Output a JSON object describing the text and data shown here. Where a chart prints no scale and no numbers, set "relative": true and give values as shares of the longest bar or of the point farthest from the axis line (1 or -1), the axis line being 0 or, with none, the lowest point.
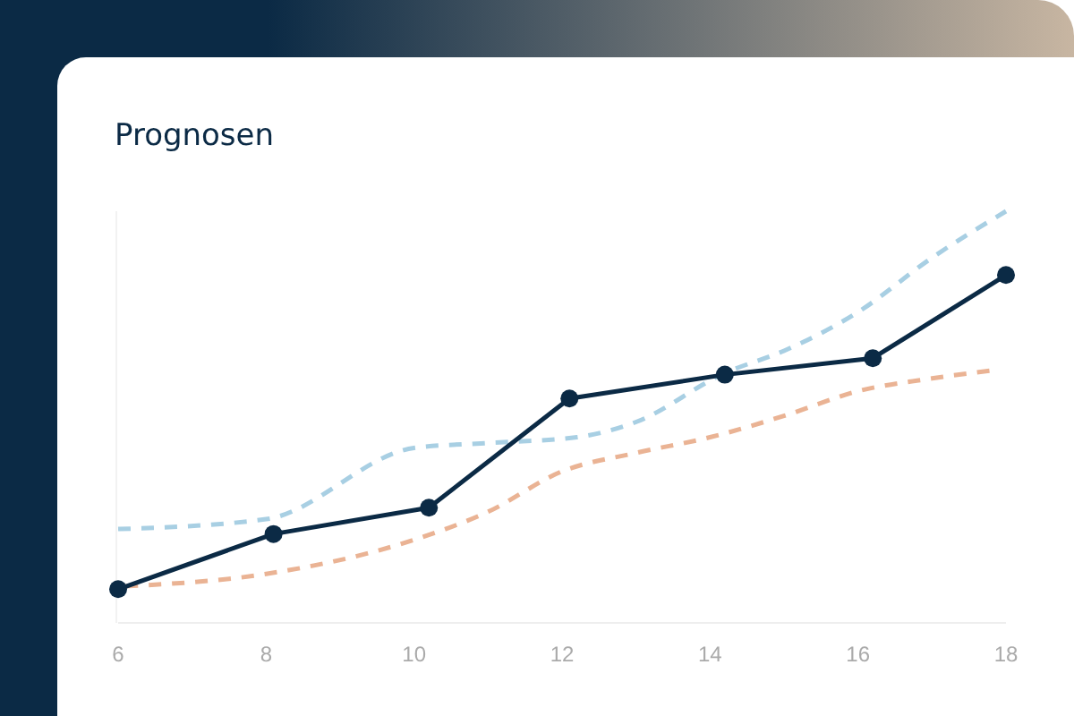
{
  "chart_data": {
    "type": "line",
    "title": "Prognosen",
    "relative": true,
    "xlim": [
      6,
      18
    ],
    "xticks": [
      6,
      8,
      10,
      12,
      14,
      16,
      18
    ],
    "grid": false,
    "series": [
      {
        "color": "#a8cfe3",
        "line_style": "dashed",
        "marker": "none",
        "x": [
          6,
          8,
          10,
          11,
          12.2,
          13,
          14.2,
          15,
          16,
          17,
          18
        ],
        "values": [
          0.228,
          0.252,
          0.425,
          0.437,
          0.451,
          0.488,
          0.607,
          0.661,
          0.755,
          0.887,
          1
        ]
      },
      {
        "color": "#eab394",
        "line_style": "dashed",
        "marker": "none",
        "x": [
          6.1,
          8,
          10,
          11,
          12,
          13,
          14,
          15,
          16,
          17,
          17.8
        ],
        "values": [
          0.089,
          0.119,
          0.202,
          0.27,
          0.368,
          0.413,
          0.451,
          0.503,
          0.563,
          0.594,
          0.613
        ]
      },
      {
        "color": "#0b2a45",
        "line_style": "solid",
        "marker": "circle",
        "x": [
          6,
          8.1,
          10.2,
          12.1,
          14.2,
          16.2,
          18
        ],
        "values": [
          0.082,
          0.216,
          0.28,
          0.545,
          0.603,
          0.643,
          0.845
        ]
      }
    ]
  }
}
